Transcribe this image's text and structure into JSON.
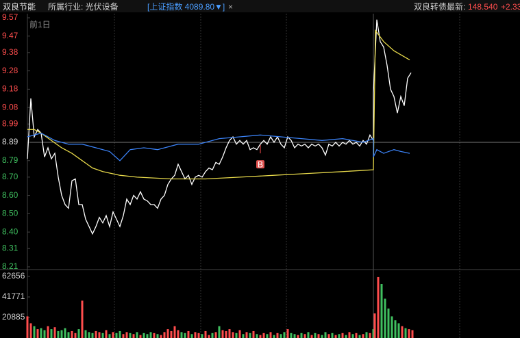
{
  "header": {
    "stock": "双良节能",
    "industry": "所属行业: 光伏设备",
    "index": "[上证指数 4089.80▼]",
    "close": "×",
    "bond_label": "双良转债最新:",
    "bond_price": "148.540",
    "bond_change": "+2.33",
    "period": "前1日"
  },
  "chart_data": [
    {
      "type": "line",
      "ylim": [
        8.21,
        9.57
      ],
      "xlim": [
        0,
        143.8
      ],
      "baseline": 8.89,
      "yticks": [
        9.57,
        9.47,
        9.38,
        9.28,
        9.18,
        9.08,
        8.99,
        8.89,
        8.79,
        {
          "value": 8.7,
          "label": "8.70"
        },
        {
          "value": 8.6,
          "label": "8.60"
        },
        {
          "value": 8.5,
          "label": "8.50"
        },
        {
          "value": 8.4,
          "label": "8.40"
        },
        8.31,
        8.21
      ],
      "colors": {
        "up": "#ff4d4d",
        "flat": "#e0e0e0",
        "down": "#3fbf5f"
      },
      "annotations": [
        {
          "text": "B",
          "x": 68,
          "y": 8.77
        }
      ],
      "series": [
        {
          "color": "#ffffff",
          "x": [
            0,
            1,
            2,
            3,
            4,
            5,
            6,
            7,
            8,
            9,
            10,
            11,
            12,
            13,
            14,
            15,
            16,
            17,
            18,
            19,
            20,
            21,
            22,
            23,
            24,
            25,
            26,
            27,
            28,
            29,
            30,
            31,
            32,
            33,
            34,
            35,
            36,
            37,
            38,
            39,
            40,
            41,
            42,
            43,
            44,
            45,
            46,
            47,
            48,
            49,
            50,
            51,
            52,
            53,
            54,
            55,
            56,
            57,
            58,
            59,
            60,
            61,
            62,
            63,
            64,
            65,
            66,
            67,
            68,
            69,
            70,
            71,
            72,
            73,
            74,
            75,
            76,
            77,
            78,
            79,
            80,
            81,
            82,
            83,
            84,
            85,
            86,
            87,
            88,
            89,
            90,
            91,
            92,
            93,
            94,
            95,
            96,
            97,
            98,
            99,
            100,
            101,
            101,
            102,
            103,
            104,
            105,
            106,
            107,
            108,
            109,
            110,
            111,
            112
          ],
          "values": [
            8.8,
            9.13,
            8.92,
            8.96,
            8.94,
            8.81,
            8.86,
            8.8,
            8.83,
            8.7,
            8.6,
            8.55,
            8.53,
            8.68,
            8.69,
            8.55,
            8.55,
            8.47,
            8.43,
            8.39,
            8.43,
            8.48,
            8.45,
            8.49,
            8.43,
            8.51,
            8.47,
            8.43,
            8.49,
            8.58,
            8.55,
            8.6,
            8.58,
            8.62,
            8.58,
            8.57,
            8.55,
            8.55,
            8.53,
            8.58,
            8.6,
            8.66,
            8.69,
            8.71,
            8.77,
            8.73,
            8.69,
            8.71,
            8.66,
            8.7,
            8.71,
            8.7,
            8.73,
            8.75,
            8.74,
            8.78,
            8.77,
            8.81,
            8.86,
            8.9,
            8.92,
            8.88,
            8.9,
            8.88,
            8.9,
            8.85,
            8.86,
            8.85,
            8.88,
            8.9,
            8.88,
            8.92,
            8.89,
            8.92,
            8.88,
            8.86,
            8.92,
            8.9,
            8.86,
            8.88,
            8.87,
            8.88,
            8.86,
            8.88,
            8.87,
            8.88,
            8.86,
            8.82,
            8.88,
            8.87,
            8.89,
            8.87,
            8.89,
            8.88,
            8.9,
            8.88,
            8.89,
            8.87,
            8.9,
            8.88,
            8.93,
            8.9,
            9.16,
            9.56,
            9.44,
            9.41,
            9.31,
            9.18,
            9.14,
            9.05,
            9.14,
            9.09,
            9.24,
            9.27
          ]
        },
        {
          "color": "#e6d84a",
          "x": [
            0,
            2,
            4,
            7,
            10,
            13,
            16,
            19,
            22,
            27,
            32,
            42,
            52,
            62,
            72,
            82,
            92,
            101,
            101.6,
            104,
            107,
            111.6
          ],
          "values": [
            8.96,
            8.96,
            8.94,
            8.9,
            8.86,
            8.83,
            8.79,
            8.75,
            8.73,
            8.71,
            8.7,
            8.69,
            8.69,
            8.7,
            8.71,
            8.72,
            8.73,
            8.74,
            9.5,
            9.44,
            9.39,
            9.34
          ]
        },
        {
          "color": "#3b82f6",
          "x": [
            0,
            4,
            8,
            12,
            16,
            20,
            24,
            27,
            30,
            34,
            38,
            44,
            50,
            56,
            62,
            68,
            74,
            80,
            86,
            92,
            98,
            101,
            101,
            102,
            104,
            107,
            109,
            111.6
          ],
          "values": [
            8.92,
            8.94,
            8.9,
            8.88,
            8.88,
            8.86,
            8.84,
            8.79,
            8.85,
            8.86,
            8.85,
            8.88,
            8.88,
            8.91,
            8.92,
            8.93,
            8.92,
            8.91,
            8.9,
            8.91,
            8.89,
            8.91,
            8.81,
            8.85,
            8.83,
            8.85,
            8.84,
            8.83
          ]
        }
      ]
    },
    {
      "type": "bar",
      "ylim": [
        0,
        66833
      ],
      "xlim": [
        0,
        143.8
      ],
      "yticks": [
        62656,
        41771,
        20885
      ],
      "values": [
        22000,
        15000,
        12000,
        9000,
        10000,
        8000,
        12000,
        9000,
        11000,
        7000,
        8000,
        10000,
        6000,
        7000,
        5000,
        9000,
        38000,
        8000,
        6000,
        5000,
        7000,
        6000,
        5000,
        8000,
        4000,
        6000,
        5000,
        7000,
        4000,
        6000,
        5000,
        4000,
        6000,
        3000,
        5000,
        4000,
        6000,
        5000,
        4000,
        3000,
        6000,
        9000,
        7000,
        12000,
        8000,
        6000,
        5000,
        7000,
        4000,
        6000,
        5000,
        4000,
        7000,
        3000,
        5000,
        6000,
        12000,
        8000,
        7000,
        9000,
        6000,
        5000,
        8000,
        4000,
        6000,
        5000,
        7000,
        4000,
        3000,
        5000,
        4000,
        6000,
        3000,
        5000,
        4000,
        6000,
        9000,
        5000,
        4000,
        3000,
        5000,
        4000,
        6000,
        3000,
        5000,
        4000,
        3000,
        6000,
        4000,
        5000,
        3000,
        4000,
        5000,
        3000,
        6000,
        4000,
        5000,
        3000,
        4000,
        6000,
        5000,
        9000,
        25000,
        62000,
        55000,
        40000,
        30000,
        22000,
        18000,
        15000,
        12000,
        10000,
        9000,
        8000
      ]
    }
  ]
}
